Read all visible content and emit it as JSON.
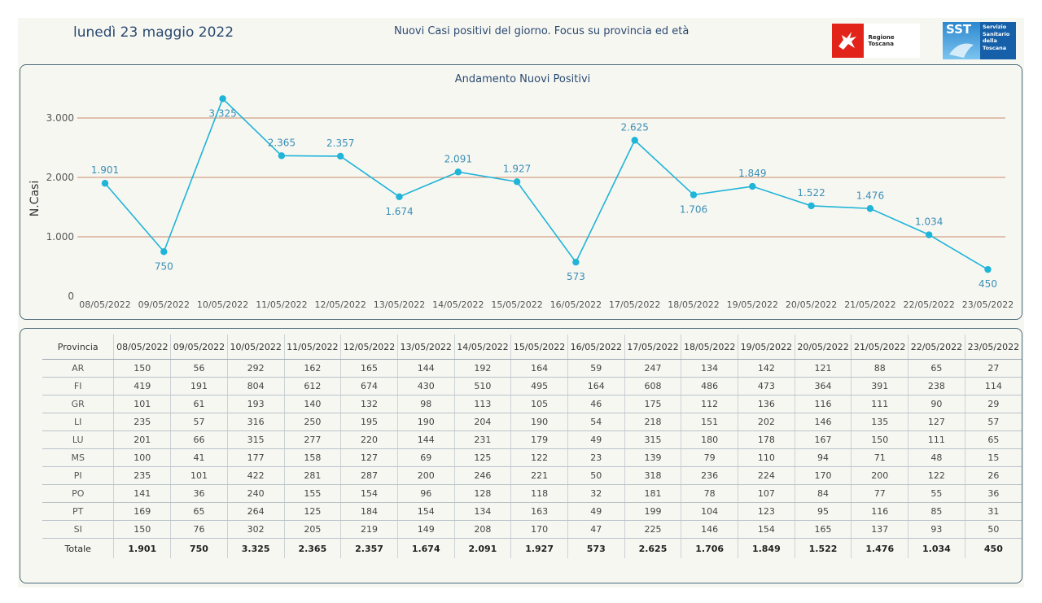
{
  "header": {
    "date": "lunedì 23 maggio 2022",
    "title": "Nuovi Casi positivi del giorno. Focus su provincia ed età",
    "logo_rt_text": "Regione Toscana",
    "logo_sst_emblem": "SST",
    "logo_sst_lines": [
      "Servizio",
      "Sanitario",
      "della",
      "Toscana"
    ]
  },
  "chart_data": {
    "type": "line",
    "title": "Andamento Nuovi Positivi",
    "xlabel": "",
    "ylabel": "N.Casi",
    "ylim": [
      0,
      3000
    ],
    "yticks": [
      0,
      1000,
      2000,
      3000
    ],
    "ytick_labels": [
      "0",
      "1.000",
      "2.000",
      "3.000"
    ],
    "grid": true,
    "color": "#1fb4d8",
    "gridline_color": "#c98b6a",
    "categories": [
      "08/05/2022",
      "09/05/2022",
      "10/05/2022",
      "11/05/2022",
      "12/05/2022",
      "13/05/2022",
      "14/05/2022",
      "15/05/2022",
      "16/05/2022",
      "17/05/2022",
      "18/05/2022",
      "19/05/2022",
      "20/05/2022",
      "21/05/2022",
      "22/05/2022",
      "23/05/2022"
    ],
    "values": [
      1901,
      750,
      3325,
      2365,
      2357,
      1674,
      2091,
      1927,
      573,
      2625,
      1706,
      1849,
      1522,
      1476,
      1034,
      450
    ],
    "value_labels": [
      "1.901",
      "750",
      "3.325",
      "2.365",
      "2.357",
      "1.674",
      "2.091",
      "1.927",
      "573",
      "2.625",
      "1.706",
      "1.849",
      "1.522",
      "1.476",
      "1.034",
      "450"
    ],
    "label_positions": [
      "above",
      "below",
      "below",
      "above",
      "above",
      "below",
      "above",
      "above",
      "below",
      "above",
      "below",
      "above",
      "above",
      "above",
      "above",
      "below"
    ]
  },
  "table": {
    "header_label": "Provincia",
    "dates": [
      "08/05/2022",
      "09/05/2022",
      "10/05/2022",
      "11/05/2022",
      "12/05/2022",
      "13/05/2022",
      "14/05/2022",
      "15/05/2022",
      "16/05/2022",
      "17/05/2022",
      "18/05/2022",
      "19/05/2022",
      "20/05/2022",
      "21/05/2022",
      "22/05/2022",
      "23/05/2022"
    ],
    "rows": [
      {
        "name": "AR",
        "values": [
          "150",
          "56",
          "292",
          "162",
          "165",
          "144",
          "192",
          "164",
          "59",
          "247",
          "134",
          "142",
          "121",
          "88",
          "65",
          "27"
        ]
      },
      {
        "name": "FI",
        "values": [
          "419",
          "191",
          "804",
          "612",
          "674",
          "430",
          "510",
          "495",
          "164",
          "608",
          "486",
          "473",
          "364",
          "391",
          "238",
          "114"
        ]
      },
      {
        "name": "GR",
        "values": [
          "101",
          "61",
          "193",
          "140",
          "132",
          "98",
          "113",
          "105",
          "46",
          "175",
          "112",
          "136",
          "116",
          "111",
          "90",
          "29"
        ]
      },
      {
        "name": "LI",
        "values": [
          "235",
          "57",
          "316",
          "250",
          "195",
          "190",
          "204",
          "190",
          "54",
          "218",
          "151",
          "202",
          "146",
          "135",
          "127",
          "57"
        ]
      },
      {
        "name": "LU",
        "values": [
          "201",
          "66",
          "315",
          "277",
          "220",
          "144",
          "231",
          "179",
          "49",
          "315",
          "180",
          "178",
          "167",
          "150",
          "111",
          "65"
        ]
      },
      {
        "name": "MS",
        "values": [
          "100",
          "41",
          "177",
          "158",
          "127",
          "69",
          "125",
          "122",
          "23",
          "139",
          "79",
          "110",
          "94",
          "71",
          "48",
          "15"
        ]
      },
      {
        "name": "PI",
        "values": [
          "235",
          "101",
          "422",
          "281",
          "287",
          "200",
          "246",
          "221",
          "50",
          "318",
          "236",
          "224",
          "170",
          "200",
          "122",
          "26"
        ]
      },
      {
        "name": "PO",
        "values": [
          "141",
          "36",
          "240",
          "155",
          "154",
          "96",
          "128",
          "118",
          "32",
          "181",
          "78",
          "107",
          "84",
          "77",
          "55",
          "36"
        ]
      },
      {
        "name": "PT",
        "values": [
          "169",
          "65",
          "264",
          "125",
          "184",
          "154",
          "134",
          "163",
          "49",
          "199",
          "104",
          "123",
          "95",
          "116",
          "85",
          "31"
        ]
      },
      {
        "name": "SI",
        "values": [
          "150",
          "76",
          "302",
          "205",
          "219",
          "149",
          "208",
          "170",
          "47",
          "225",
          "146",
          "154",
          "165",
          "137",
          "93",
          "50"
        ]
      }
    ],
    "total": {
      "name": "Totale",
      "values": [
        "1.901",
        "750",
        "3.325",
        "2.365",
        "2.357",
        "1.674",
        "2.091",
        "1.927",
        "573",
        "2.625",
        "1.706",
        "1.849",
        "1.522",
        "1.476",
        "1.034",
        "450"
      ]
    }
  }
}
